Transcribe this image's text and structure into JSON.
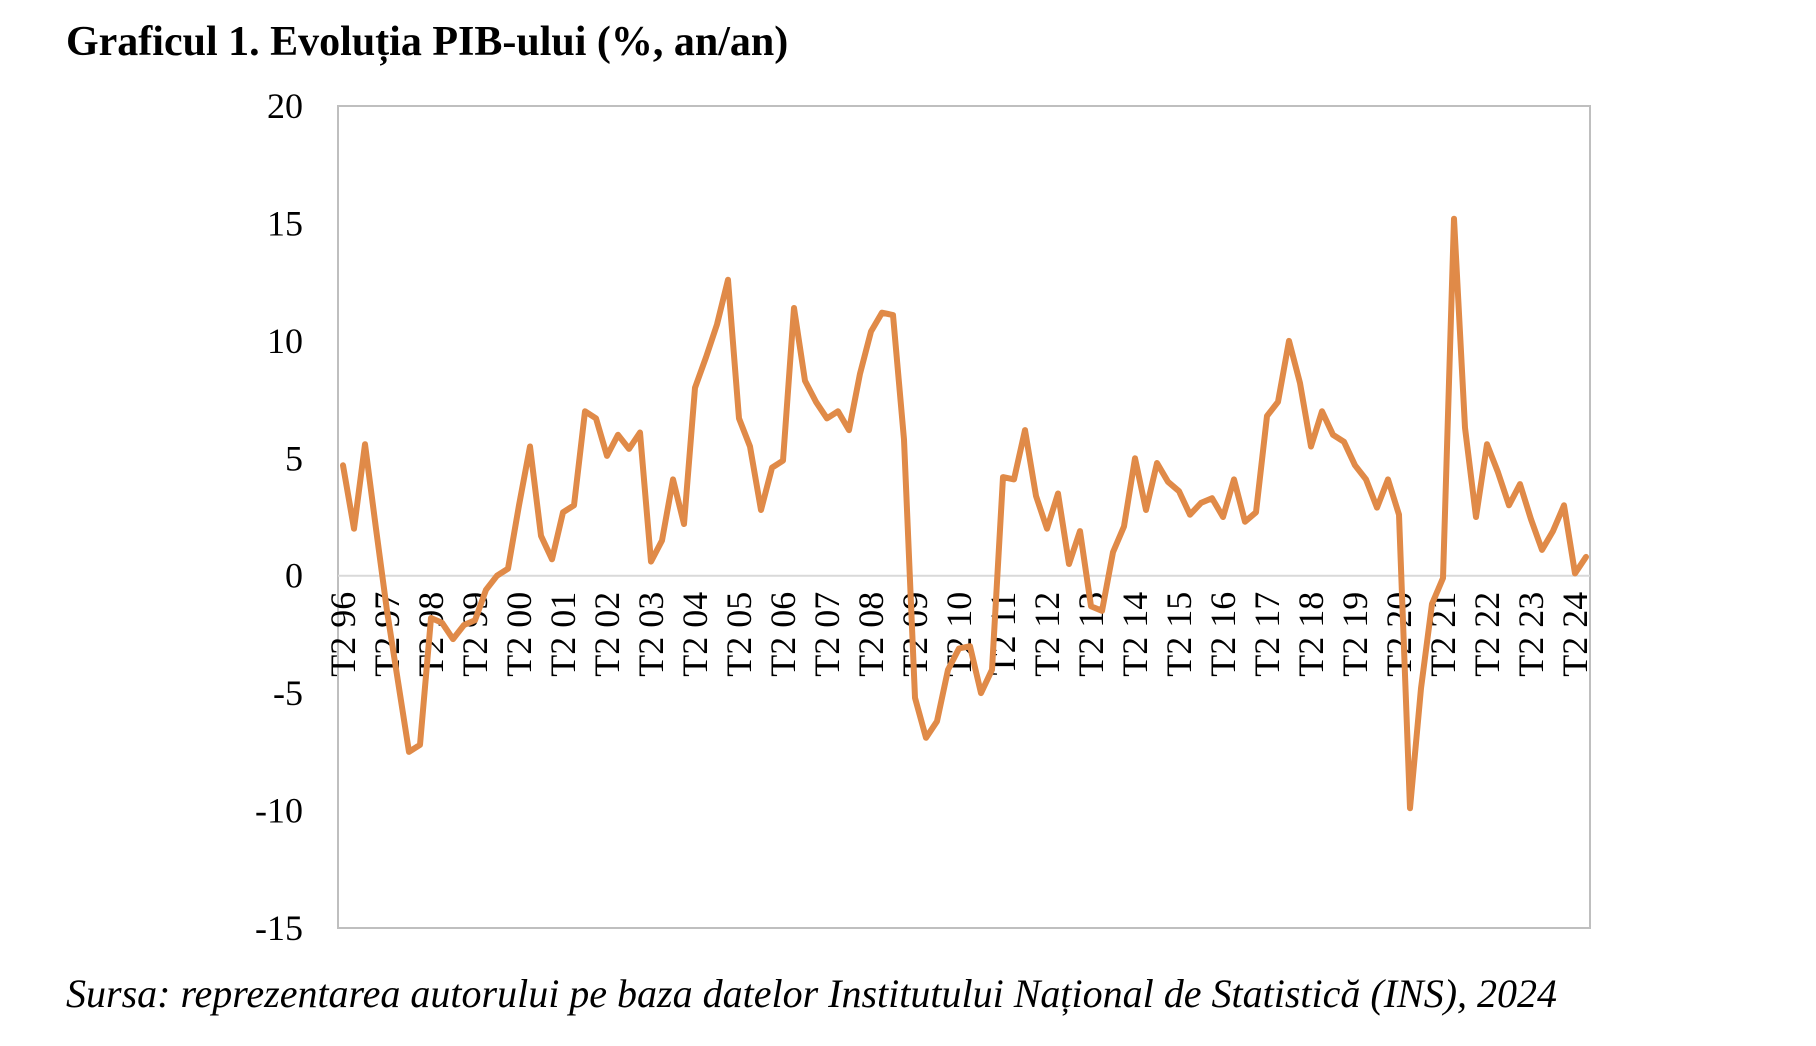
{
  "title": "Graficul 1. Evoluția PIB-ului (%, an/an)",
  "source": "Sursa: reprezentarea autorului pe baza datelor Institutului Național de Statistică (INS), 2024",
  "colors": {
    "line": "#E08A48",
    "axis": "#BFBFBF",
    "zero_line": "#D9D9D9"
  },
  "chart_data": {
    "type": "line",
    "title": "Graficul 1. Evoluția PIB-ului (%, an/an)",
    "xlabel": "",
    "ylabel": "",
    "ylim": [
      -15,
      20
    ],
    "yticks": [
      20,
      15,
      10,
      5,
      0,
      -5,
      -10,
      -15
    ],
    "ytick_labels": [
      "20",
      "15",
      "10",
      "5",
      "0",
      "-5",
      "-10",
      "-15"
    ],
    "grid": false,
    "legend": "none",
    "x_tick_labels": [
      "T2 96",
      "T2 97",
      "T2 98",
      "T2 99",
      "T2 00",
      "T2 01",
      "T2 02",
      "T2 03",
      "T2 04",
      "T2 05",
      "T2 06",
      "T2 07",
      "T2 08",
      "T2 09",
      "T2 10",
      "T2 11",
      "T2 12",
      "T2 13",
      "T2 14",
      "T2 15",
      "T2 16",
      "T2 17",
      "T2 18",
      "T2 19",
      "T2 20",
      "T2 21",
      "T2 22",
      "T2 23",
      "T2 24"
    ],
    "x_tick_quarter_index": [
      0,
      4,
      8,
      12,
      16,
      20,
      24,
      28,
      32,
      36,
      40,
      44,
      48,
      52,
      56,
      60,
      64,
      68,
      72,
      76,
      80,
      84,
      88,
      92,
      96,
      100,
      104,
      108,
      112
    ],
    "series": [
      {
        "values": [
          4.7,
          2.0,
          5.6,
          2.0,
          -1.5,
          -4.5,
          -7.5,
          -7.2,
          -1.8,
          -2.0,
          -2.7,
          -2.1,
          -1.9,
          -0.6,
          0.0,
          0.3,
          3.0,
          5.5,
          1.7,
          0.7,
          2.7,
          3.0,
          7.0,
          6.7,
          5.1,
          6.0,
          5.4,
          6.1,
          0.6,
          1.5,
          4.1,
          2.2,
          8.0,
          9.3,
          10.7,
          12.6,
          6.7,
          5.5,
          2.8,
          4.6,
          4.9,
          11.4,
          8.3,
          7.4,
          6.7,
          7.0,
          6.2,
          8.6,
          10.4,
          11.2,
          11.1,
          5.8,
          -5.2,
          -6.9,
          -6.2,
          -4.0,
          -3.1,
          -3.0,
          -5.0,
          -4.0,
          4.2,
          4.1,
          6.2,
          3.4,
          2.0,
          3.5,
          0.5,
          1.9,
          -1.3,
          -1.5,
          1.0,
          2.1,
          5.0,
          2.8,
          4.8,
          4.0,
          3.6,
          2.6,
          3.1,
          3.3,
          2.5,
          4.1,
          2.3,
          2.7,
          6.8,
          7.4,
          10.0,
          8.2,
          5.5,
          7.0,
          6.0,
          5.7,
          4.7,
          4.1,
          2.9,
          4.1,
          2.6,
          -9.9,
          -4.8,
          -1.2,
          -0.1,
          15.2,
          6.3,
          2.5,
          5.6,
          4.4,
          3.0,
          3.9,
          2.4,
          1.1,
          1.9,
          3.0,
          0.1,
          0.8
        ]
      }
    ]
  }
}
